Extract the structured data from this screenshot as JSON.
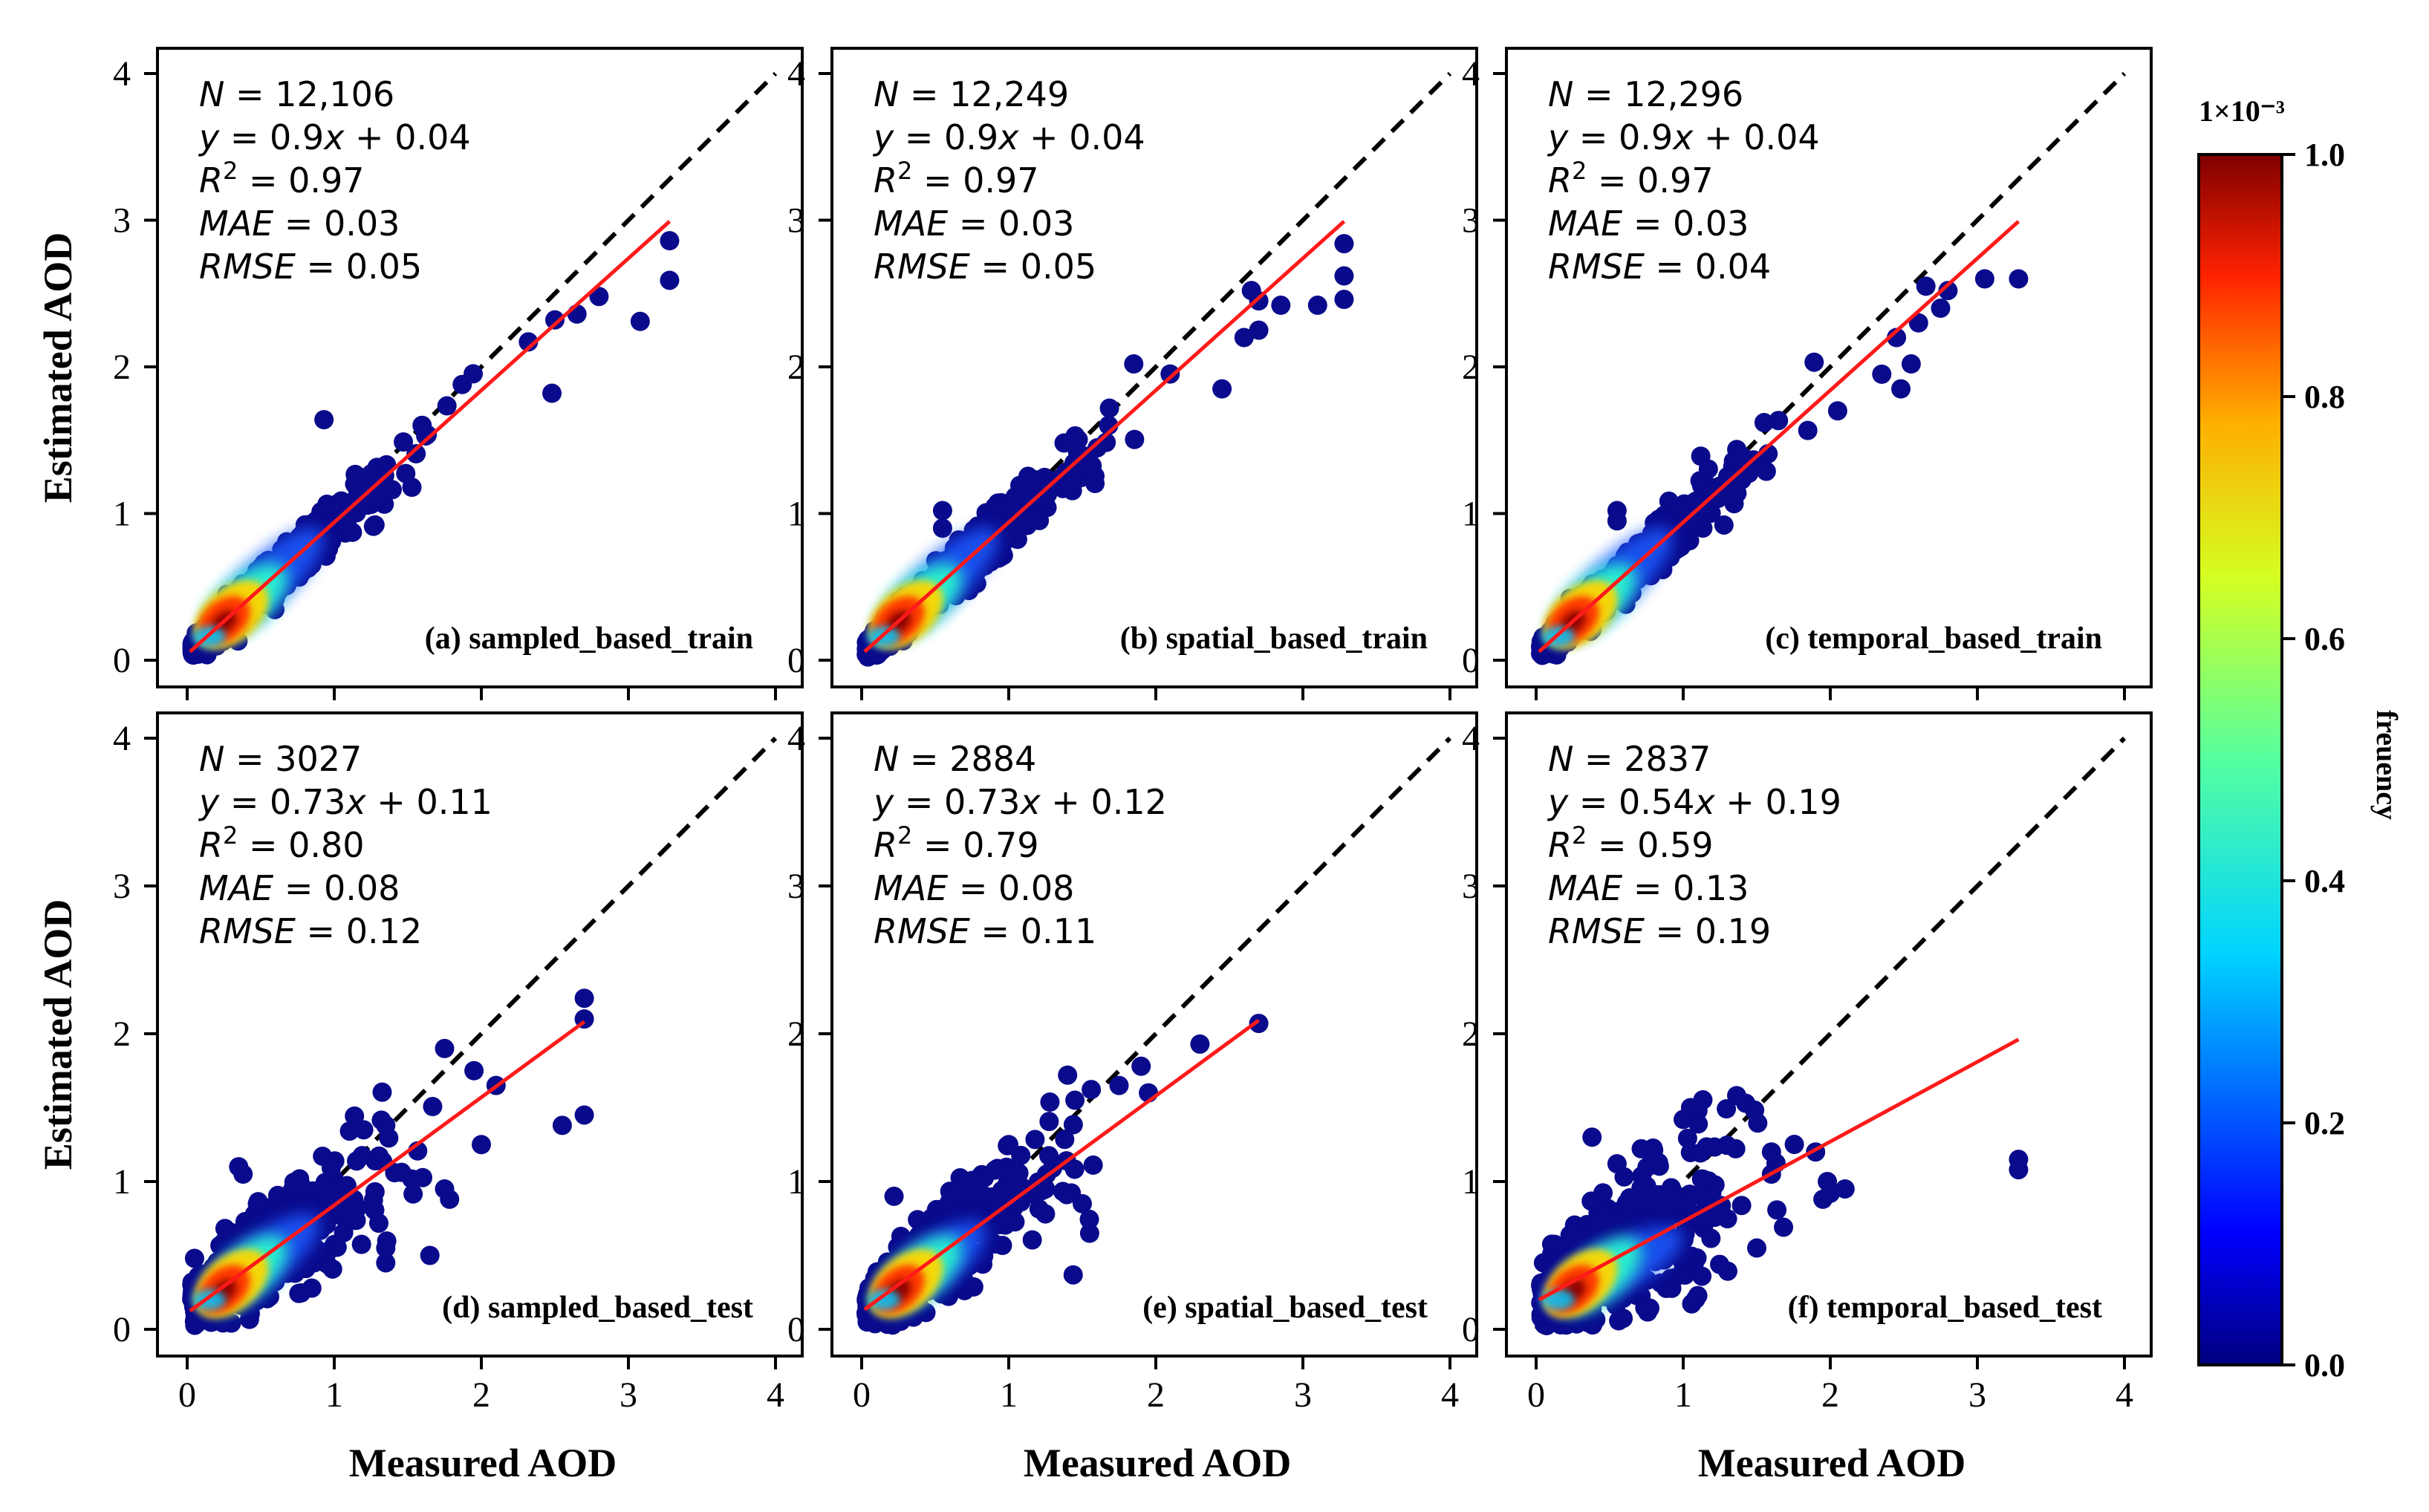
{
  "chart_data": [
    {
      "type": "scatter",
      "panel_label": "(a) sampled_based_train",
      "xlabel": "",
      "ylabel": "Estimated AOD",
      "xlim": [
        0,
        4
      ],
      "ylim": [
        0,
        4
      ],
      "xticks": [
        "0",
        "1",
        "2",
        "3",
        "4"
      ],
      "yticks": [
        "0",
        "1",
        "2",
        "3",
        "4"
      ],
      "stats": {
        "N": "12,106",
        "fit": "0.9x + 0.04",
        "R2": "0.97",
        "MAE": "0.03",
        "RMSE": "0.05"
      },
      "fit_line": {
        "slope": 0.9,
        "intercept": 0.04,
        "x_range": [
          0.02,
          3.28
        ]
      },
      "one_to_one_line": true,
      "outliers": [
        [
          3.28,
          2.86
        ],
        [
          3.28,
          2.59
        ],
        [
          2.8,
          2.48
        ],
        [
          2.65,
          2.36
        ],
        [
          2.5,
          2.32
        ],
        [
          3.08,
          2.31
        ],
        [
          2.48,
          1.82
        ],
        [
          1.87,
          1.88
        ],
        [
          2.32,
          2.17
        ],
        [
          0.93,
          1.64
        ]
      ],
      "core": [
        [
          0.25,
          0.27
        ],
        [
          0.15,
          0.16
        ],
        [
          0.45,
          0.45
        ],
        [
          0.8,
          0.78
        ]
      ]
    },
    {
      "type": "scatter",
      "panel_label": "(b) spatial_based_train",
      "xlabel": "",
      "ylabel": "",
      "xlim": [
        0,
        4
      ],
      "ylim": [
        0,
        4
      ],
      "xticks": [
        "0",
        "1",
        "2",
        "3",
        "4"
      ],
      "yticks": [
        "0",
        "1",
        "2",
        "3",
        "4"
      ],
      "stats": {
        "N": "12,249",
        "fit": "0.9x + 0.04",
        "R2": "0.97",
        "MAE": "0.03",
        "RMSE": "0.05"
      },
      "fit_line": {
        "slope": 0.9,
        "intercept": 0.04,
        "x_range": [
          0.02,
          3.28
        ]
      },
      "one_to_one_line": true,
      "outliers": [
        [
          3.28,
          2.84
        ],
        [
          3.28,
          2.62
        ],
        [
          3.28,
          2.46
        ],
        [
          2.65,
          2.52
        ],
        [
          2.7,
          2.45
        ],
        [
          2.85,
          2.42
        ],
        [
          3.1,
          2.42
        ],
        [
          2.6,
          2.2
        ],
        [
          2.7,
          2.25
        ],
        [
          2.45,
          1.85
        ],
        [
          1.85,
          2.02
        ],
        [
          0.55,
          1.02
        ],
        [
          0.55,
          0.9
        ]
      ],
      "core": [
        [
          0.25,
          0.27
        ],
        [
          0.15,
          0.16
        ],
        [
          0.45,
          0.45
        ],
        [
          0.8,
          0.78
        ]
      ]
    },
    {
      "type": "scatter",
      "panel_label": "(c) temporal_based_train",
      "xlabel": "",
      "ylabel": "",
      "xlim": [
        0,
        4
      ],
      "ylim": [
        0,
        4
      ],
      "xticks": [
        "0",
        "1",
        "2",
        "3",
        "4"
      ],
      "yticks": [
        "0",
        "1",
        "2",
        "3",
        "4"
      ],
      "stats": {
        "N": "12,296",
        "fit": "0.9x + 0.04",
        "R2": "0.97",
        "MAE": "0.03",
        "RMSE": "0.04"
      },
      "fit_line": {
        "slope": 0.9,
        "intercept": 0.04,
        "x_range": [
          0.02,
          3.28
        ]
      },
      "one_to_one_line": true,
      "outliers": [
        [
          3.28,
          2.6
        ],
        [
          3.05,
          2.6
        ],
        [
          2.8,
          2.52
        ],
        [
          2.65,
          2.55
        ],
        [
          2.75,
          2.4
        ],
        [
          2.6,
          2.3
        ],
        [
          2.45,
          2.2
        ],
        [
          2.55,
          2.02
        ],
        [
          2.35,
          1.95
        ],
        [
          2.48,
          1.85
        ],
        [
          2.05,
          1.7
        ],
        [
          1.55,
          1.62
        ],
        [
          0.55,
          1.02
        ],
        [
          0.55,
          0.95
        ]
      ],
      "core": [
        [
          0.25,
          0.27
        ],
        [
          0.15,
          0.16
        ],
        [
          0.45,
          0.45
        ],
        [
          0.8,
          0.78
        ]
      ]
    },
    {
      "type": "scatter",
      "panel_label": "(d) sampled_based_test",
      "xlabel": "Measured AOD",
      "ylabel": "Estimated AOD",
      "xlim": [
        0,
        4
      ],
      "ylim": [
        0,
        4
      ],
      "xticks": [
        "0",
        "1",
        "2",
        "3",
        "4"
      ],
      "yticks": [
        "0",
        "1",
        "2",
        "3",
        "4"
      ],
      "stats": {
        "N": "3027",
        "fit": "0.73x + 0.11",
        "R2": "0.80",
        "MAE": "0.08",
        "RMSE": "0.12"
      },
      "fit_line": {
        "slope": 0.73,
        "intercept": 0.11,
        "x_range": [
          0.02,
          2.7
        ]
      },
      "one_to_one_line": true,
      "outliers": [
        [
          2.7,
          2.24
        ],
        [
          2.7,
          2.1
        ],
        [
          2.55,
          1.38
        ],
        [
          2.7,
          1.45
        ],
        [
          2.1,
          1.65
        ],
        [
          1.95,
          1.75
        ],
        [
          1.75,
          1.9
        ],
        [
          2.0,
          1.25
        ],
        [
          1.75,
          0.95
        ],
        [
          1.35,
          1.38
        ],
        [
          1.2,
          1.35
        ],
        [
          0.05,
          0.48
        ],
        [
          0.35,
          1.1
        ],
        [
          0.38,
          1.05
        ],
        [
          1.35,
          0.45
        ],
        [
          1.35,
          0.55
        ],
        [
          1.65,
          0.5
        ]
      ],
      "core": [
        [
          0.25,
          0.27
        ],
        [
          0.15,
          0.2
        ],
        [
          0.45,
          0.42
        ],
        [
          0.75,
          0.65
        ]
      ]
    },
    {
      "type": "scatter",
      "panel_label": "(e) spatial_based_test",
      "xlabel": "Measured AOD",
      "ylabel": "",
      "xlim": [
        0,
        4
      ],
      "ylim": [
        0,
        4
      ],
      "xticks": [
        "0",
        "1",
        "2",
        "3",
        "4"
      ],
      "yticks": [
        "0",
        "1",
        "2",
        "3",
        "4"
      ],
      "stats": {
        "N": "2884",
        "fit": "0.73x + 0.12",
        "R2": "0.79",
        "MAE": "0.08",
        "RMSE": "0.11"
      },
      "fit_line": {
        "slope": 0.73,
        "intercept": 0.12,
        "x_range": [
          0.02,
          2.7
        ]
      },
      "one_to_one_line": true,
      "outliers": [
        [
          2.7,
          2.07
        ],
        [
          2.3,
          1.93
        ],
        [
          1.9,
          1.78
        ],
        [
          1.95,
          1.6
        ],
        [
          1.75,
          1.65
        ],
        [
          1.4,
          1.72
        ],
        [
          1.45,
          1.55
        ],
        [
          1.0,
          1.25
        ],
        [
          0.22,
          0.9
        ],
        [
          0.05,
          0.28
        ],
        [
          1.25,
          0.95
        ],
        [
          1.5,
          0.85
        ],
        [
          1.55,
          0.65
        ]
      ],
      "core": [
        [
          0.25,
          0.27
        ],
        [
          0.15,
          0.2
        ],
        [
          0.45,
          0.42
        ],
        [
          0.7,
          0.6
        ]
      ]
    },
    {
      "type": "scatter",
      "panel_label": "(f) temporal_based_test",
      "xlabel": "Measured AOD",
      "ylabel": "",
      "xlim": [
        0,
        4
      ],
      "ylim": [
        0,
        4
      ],
      "xticks": [
        "0",
        "1",
        "2",
        "3",
        "4"
      ],
      "yticks": [
        "0",
        "1",
        "2",
        "3",
        "4"
      ],
      "stats": {
        "N": "2837",
        "fit": "0.54x + 0.19",
        "R2": "0.59",
        "MAE": "0.13",
        "RMSE": "0.19"
      },
      "fit_line": {
        "slope": 0.54,
        "intercept": 0.19,
        "x_range": [
          0.02,
          3.28
        ]
      },
      "one_to_one_line": true,
      "outliers": [
        [
          3.28,
          1.15
        ],
        [
          3.28,
          1.08
        ],
        [
          2.1,
          0.95
        ],
        [
          2.0,
          0.92
        ],
        [
          1.98,
          1.0
        ],
        [
          1.95,
          0.88
        ],
        [
          1.9,
          1.2
        ],
        [
          1.6,
          1.2
        ],
        [
          1.1,
          1.48
        ],
        [
          1.05,
          1.5
        ],
        [
          1.0,
          1.42
        ],
        [
          0.38,
          1.3
        ],
        [
          0.55,
          1.12
        ],
        [
          1.6,
          1.05
        ],
        [
          0.05,
          0.45
        ],
        [
          1.5,
          0.55
        ]
      ],
      "core": [
        [
          0.25,
          0.27
        ],
        [
          0.15,
          0.2
        ],
        [
          0.5,
          0.4
        ],
        [
          0.8,
          0.55
        ]
      ]
    }
  ],
  "colorbar": {
    "title": "freuency",
    "multiplier": "1×10⁻³",
    "ticks": [
      "0.0",
      "0.2",
      "0.4",
      "0.6",
      "0.8",
      "1.0"
    ],
    "range": [
      0.0,
      1.0
    ],
    "colormap": [
      "#00007f",
      "#0000ff",
      "#00a8ff",
      "#2cffcb",
      "#7fff7f",
      "#cbff2c",
      "#ffd600",
      "#ff4400",
      "#d40000",
      "#7f0000"
    ]
  },
  "colors": {
    "fit_line": "#ff1a1a",
    "one_to_one_line": "#000000",
    "point_low": "#0a0a8c"
  }
}
